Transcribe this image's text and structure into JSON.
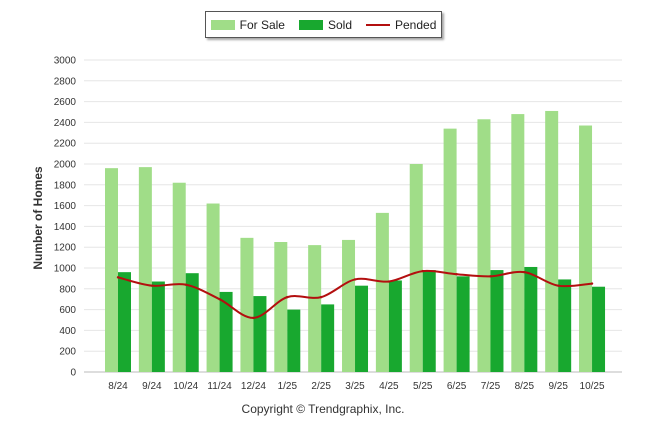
{
  "chart_data": {
    "type": "bar",
    "categories": [
      "8/24",
      "9/24",
      "10/24",
      "11/24",
      "12/24",
      "1/25",
      "2/25",
      "3/25",
      "4/25",
      "5/25",
      "6/25",
      "7/25",
      "8/25",
      "9/25",
      "10/25"
    ],
    "series": [
      {
        "name": "For Sale",
        "kind": "bar",
        "color": "#a0dd88",
        "values": [
          1960,
          1970,
          1820,
          1620,
          1290,
          1250,
          1220,
          1270,
          1530,
          2000,
          2340,
          2430,
          2480,
          2510,
          2370
        ]
      },
      {
        "name": "Sold",
        "kind": "bar",
        "color": "#18a82f",
        "values": [
          960,
          870,
          950,
          770,
          730,
          600,
          650,
          830,
          880,
          980,
          920,
          980,
          1010,
          890,
          820
        ]
      },
      {
        "name": "Pended",
        "kind": "line",
        "color": "#b30f0f",
        "values": [
          910,
          830,
          840,
          700,
          520,
          720,
          720,
          890,
          870,
          970,
          940,
          920,
          960,
          830,
          850
        ]
      }
    ],
    "ylabel": "Number of Homes",
    "ylim": [
      0,
      3000
    ],
    "yticks": [
      0,
      200,
      400,
      600,
      800,
      1000,
      1200,
      1400,
      1600,
      1800,
      2000,
      2200,
      2400,
      2600,
      2800,
      3000
    ],
    "grid": true,
    "legend": "top-center"
  },
  "footer": {
    "copyright": "Copyright © Trendgraphix, Inc."
  }
}
